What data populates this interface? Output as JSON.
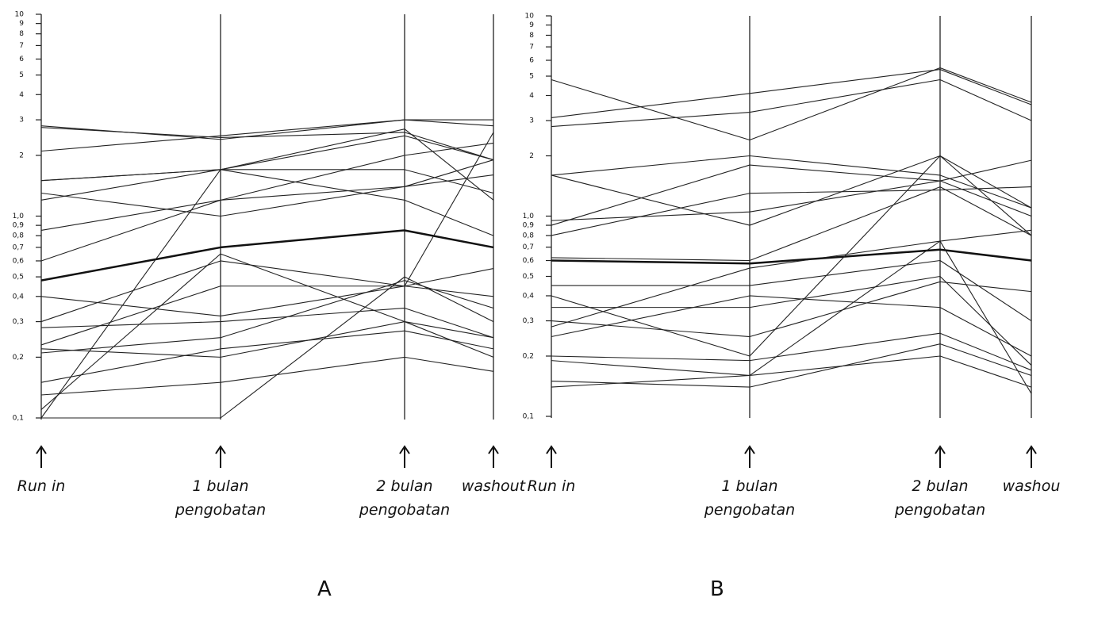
{
  "chart_data": [
    {
      "type": "line",
      "title": "A",
      "log_scale": true,
      "categories": [
        "Run in",
        "1 bulan pengobatan",
        "2 bulan pengobatan",
        "washout"
      ],
      "ylim": [
        0.1,
        10
      ],
      "yticks": [
        {
          "value": 0.1,
          "label": "0,1"
        },
        {
          "value": 0.2,
          "label": "0,2"
        },
        {
          "value": 0.3,
          "label": "0,3"
        },
        {
          "value": 0.4,
          "label": "0,4"
        },
        {
          "value": 0.5,
          "label": "0,5"
        },
        {
          "value": 0.6,
          "label": "0,6"
        },
        {
          "value": 0.7,
          "label": "0,7"
        },
        {
          "value": 0.8,
          "label": "0,8"
        },
        {
          "value": 0.9,
          "label": "0,9"
        },
        {
          "value": 1,
          "label": "1,0"
        },
        2,
        3,
        4,
        5,
        6,
        7,
        8,
        9,
        10
      ],
      "series": [
        {
          "color": "#222",
          "values": [
            2.8,
            2.4,
            3.0,
            2.8
          ]
        },
        {
          "color": "#222",
          "values": [
            2.75,
            2.45,
            2.6,
            1.9
          ]
        },
        {
          "color": "#222",
          "values": [
            2.1,
            2.5,
            3.0,
            3.0
          ]
        },
        {
          "color": "#222",
          "values": [
            1.5,
            1.7,
            2.5,
            1.9
          ]
        },
        {
          "color": "#222",
          "values": [
            1.3,
            1.0,
            1.4,
            1.6
          ]
        },
        {
          "color": "#222",
          "values": [
            1.5,
            1.7,
            1.7,
            1.3
          ]
        },
        {
          "color": "#222",
          "values": [
            1.2,
            1.7,
            1.2,
            0.8
          ]
        },
        {
          "color": "#222",
          "values": [
            0.85,
            1.2,
            2.0,
            2.3
          ]
        },
        {
          "color": "#111",
          "linewidth": 2.5,
          "values": [
            0.48,
            0.7,
            0.85,
            0.7
          ]
        },
        {
          "color": "#222",
          "values": [
            0.6,
            1.2,
            1.4,
            1.9
          ]
        },
        {
          "color": "#222",
          "values": [
            0.4,
            0.32,
            0.45,
            0.55
          ]
        },
        {
          "color": "#222",
          "values": [
            0.3,
            0.6,
            0.45,
            0.4
          ]
        },
        {
          "color": "#222",
          "values": [
            0.28,
            0.3,
            0.35,
            0.25
          ]
        },
        {
          "color": "#222",
          "values": [
            0.22,
            0.2,
            0.3,
            0.2
          ]
        },
        {
          "color": "#222",
          "values": [
            0.21,
            0.25,
            0.48,
            0.35
          ]
        },
        {
          "color": "#222",
          "values": [
            0.1,
            1.7,
            2.7,
            1.2
          ]
        },
        {
          "color": "#222",
          "values": [
            0.15,
            0.22,
            0.27,
            0.22
          ]
        },
        {
          "color": "#222",
          "values": [
            0.13,
            0.15,
            0.2,
            0.17
          ]
        },
        {
          "color": "#222",
          "values": [
            0.11,
            0.65,
            0.3,
            0.25
          ]
        },
        {
          "color": "#222",
          "values": [
            0.1,
            0.1,
            0.5,
            0.3
          ]
        },
        {
          "color": "#222",
          "values": [
            0.23,
            0.45,
            0.45,
            2.6
          ]
        }
      ]
    },
    {
      "type": "line",
      "title": "B",
      "log_scale": true,
      "categories": [
        "Run in",
        "1 bulan pengobatan",
        "2 bulan pengobatan",
        "washou"
      ],
      "ylim": [
        0.1,
        10
      ],
      "yticks": [
        {
          "value": 0.1,
          "label": "0,1"
        },
        {
          "value": 0.2,
          "label": "0,2"
        },
        {
          "value": 0.3,
          "label": "0,3"
        },
        {
          "value": 0.4,
          "label": "0,4"
        },
        {
          "value": 0.5,
          "label": "0,5"
        },
        {
          "value": 0.6,
          "label": "0,6"
        },
        {
          "value": 0.7,
          "label": "0,7"
        },
        {
          "value": 0.8,
          "label": "0,8"
        },
        {
          "value": 0.9,
          "label": "0,9"
        },
        {
          "value": 1,
          "label": "1,0"
        },
        2,
        3,
        4,
        5,
        6,
        7,
        8,
        9,
        10
      ],
      "series": [
        {
          "color": "#222",
          "values": [
            4.8,
            2.4,
            5.5,
            3.7
          ]
        },
        {
          "color": "#222",
          "values": [
            3.1,
            4.1,
            5.4,
            3.6
          ]
        },
        {
          "color": "#222",
          "values": [
            2.8,
            3.3,
            4.8,
            3.0
          ]
        },
        {
          "color": "#222",
          "values": [
            1.6,
            2.0,
            1.6,
            1.1
          ]
        },
        {
          "color": "#222",
          "values": [
            1.6,
            0.9,
            2.0,
            1.1
          ]
        },
        {
          "color": "#222",
          "values": [
            0.95,
            1.05,
            1.5,
            1.9
          ]
        },
        {
          "color": "#222",
          "values": [
            0.9,
            1.8,
            1.5,
            1.0
          ]
        },
        {
          "color": "#222",
          "values": [
            0.8,
            1.3,
            1.35,
            1.4
          ]
        },
        {
          "color": "#111",
          "linewidth": 2.5,
          "values": [
            0.6,
            0.58,
            0.68,
            0.6
          ]
        },
        {
          "color": "#222",
          "values": [
            0.62,
            0.6,
            1.4,
            0.8
          ]
        },
        {
          "color": "#222",
          "values": [
            0.45,
            0.45,
            0.6,
            0.3
          ]
        },
        {
          "color": "#222",
          "values": [
            0.35,
            0.35,
            0.5,
            0.18
          ]
        },
        {
          "color": "#222",
          "values": [
            0.3,
            0.25,
            0.47,
            0.42
          ]
        },
        {
          "color": "#222",
          "values": [
            0.28,
            0.55,
            0.75,
            0.85
          ]
        },
        {
          "color": "#222",
          "values": [
            0.2,
            0.19,
            0.26,
            0.17
          ]
        },
        {
          "color": "#222",
          "values": [
            0.19,
            0.16,
            0.2,
            0.14
          ]
        },
        {
          "color": "#222",
          "values": [
            0.15,
            0.14,
            0.23,
            0.16
          ]
        },
        {
          "color": "#222",
          "values": [
            0.14,
            0.16,
            0.75,
            0.13
          ]
        },
        {
          "color": "#222",
          "values": [
            0.25,
            0.4,
            0.35,
            0.2
          ]
        },
        {
          "color": "#222",
          "values": [
            0.4,
            0.2,
            2.0,
            0.8
          ]
        }
      ]
    }
  ]
}
